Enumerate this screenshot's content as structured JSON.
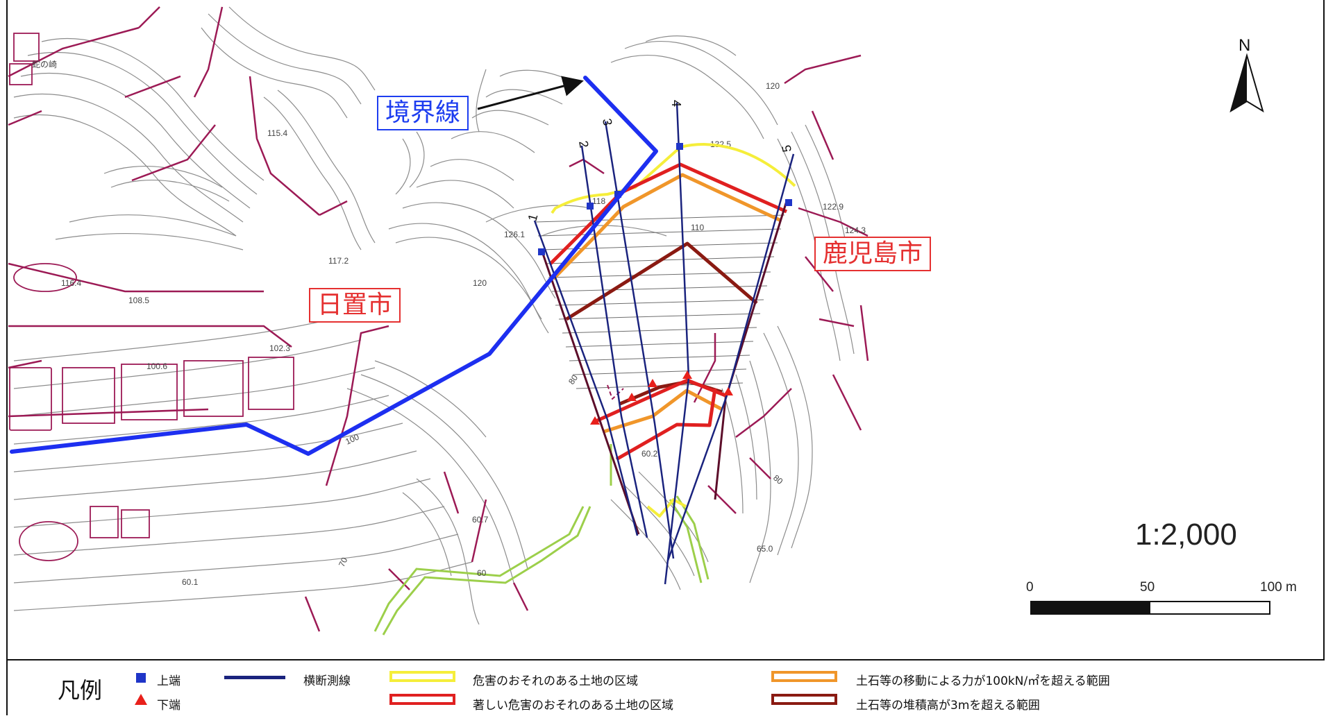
{
  "map": {
    "place_label": "蛇の崎",
    "boundary_label": "境界線",
    "city_left": "日置市",
    "city_right": "鹿児島市",
    "north": "N",
    "scale_ratio": "1:2,000",
    "scale_ticks": [
      "0",
      "50",
      "100 m"
    ],
    "section_numbers": [
      "1",
      "2",
      "3",
      "4",
      "5"
    ],
    "elevations": [
      "120",
      "115.4",
      "117.2",
      "116.4",
      "108.5",
      "102.3",
      "100.6",
      "126.1",
      "118",
      "132.5",
      "122.9",
      "124.3",
      "110",
      "120",
      "100",
      "80",
      "80",
      "60.2",
      "60.7",
      "70",
      "60.1",
      "65.0",
      "60"
    ]
  },
  "legend": {
    "title": "凡例",
    "items": [
      {
        "label": "上端",
        "symbol": "blue-square",
        "color": "#1f35c8"
      },
      {
        "label": "下端",
        "symbol": "red-triangle",
        "color": "#e8201b"
      },
      {
        "label": "横断測線",
        "symbol": "navy-line",
        "color": "#1a237e"
      },
      {
        "label": "危害のおそれのある土地の区域",
        "symbol": "yellow-box",
        "color": "#f5ee3a"
      },
      {
        "label": "著しい危害のおそれのある土地の区域",
        "symbol": "red-box",
        "color": "#e02020"
      },
      {
        "label": "土石等の移動による力が100kN/㎡を超える範囲",
        "symbol": "orange-box",
        "color": "#f0962a"
      },
      {
        "label": "土石等の堆積高が3mを超える範囲",
        "symbol": "brown-box",
        "color": "#8a1a12"
      }
    ]
  },
  "colors": {
    "boundary": "#1d2ff0",
    "contour": "#8c8c8c",
    "road": "#9c1a55",
    "survey_line": "#1a237e"
  }
}
